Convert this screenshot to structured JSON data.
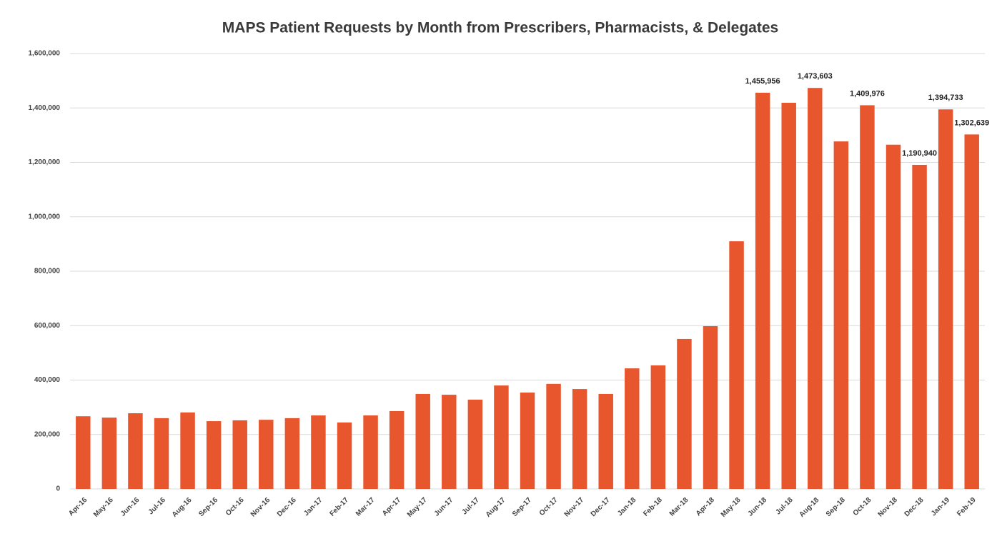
{
  "chart_data": {
    "type": "bar",
    "title": "MAPS Patient Requests by Month from Prescribers, Pharmacists, & Delegates",
    "categories": [
      "Apr-16",
      "May-16",
      "Jun-16",
      "Jul-16",
      "Aug-16",
      "Sep-16",
      "Oct-16",
      "Nov-16",
      "Dec-16",
      "Jan-17",
      "Feb-17",
      "Mar-17",
      "Apr-17",
      "May-17",
      "Jun-17",
      "Jul-17",
      "Aug-17",
      "Sep-17",
      "Oct-17",
      "Nov-17",
      "Dec-17",
      "Jan-18",
      "Feb-18",
      "Mar-18",
      "Apr-18",
      "May-18",
      "Jun-18",
      "Jul-18",
      "Aug-18",
      "Sep-18",
      "Oct-18",
      "Nov-18",
      "Dec-18",
      "Jan-19",
      "Feb-19"
    ],
    "values": [
      267000,
      262000,
      278000,
      260000,
      281000,
      249000,
      252000,
      254000,
      260000,
      270000,
      244000,
      270000,
      286000,
      349000,
      346000,
      328000,
      380000,
      354000,
      386000,
      367000,
      349000,
      443000,
      454000,
      551000,
      598000,
      910000,
      1455956,
      1419000,
      1473603,
      1277000,
      1409976,
      1265000,
      1190940,
      1394733,
      1302639
    ],
    "value_labels": [
      null,
      null,
      null,
      null,
      null,
      null,
      null,
      null,
      null,
      null,
      null,
      null,
      null,
      null,
      null,
      null,
      null,
      null,
      null,
      null,
      null,
      null,
      null,
      null,
      null,
      null,
      "1,455,956",
      null,
      "1,473,603",
      null,
      "1,409,976",
      null,
      "1,190,940",
      "1,394,733",
      "1,302,639"
    ],
    "color": "#e8562e",
    "ylim": [
      0,
      1600000
    ],
    "yticks": [
      0,
      {
        "value": 200000,
        "label": "200,000"
      },
      {
        "value": 400000,
        "label": "400,000"
      },
      {
        "value": 600000,
        "label": "600,000"
      },
      {
        "value": 800000,
        "label": "800,000"
      },
      {
        "value": 1000000,
        "label": "1,000,000"
      },
      {
        "value": 1200000,
        "label": "1,200,000"
      },
      {
        "value": 1400000,
        "label": "1,400,000"
      },
      {
        "value": 1600000,
        "label": "1,600,000"
      }
    ],
    "grid": true
  }
}
